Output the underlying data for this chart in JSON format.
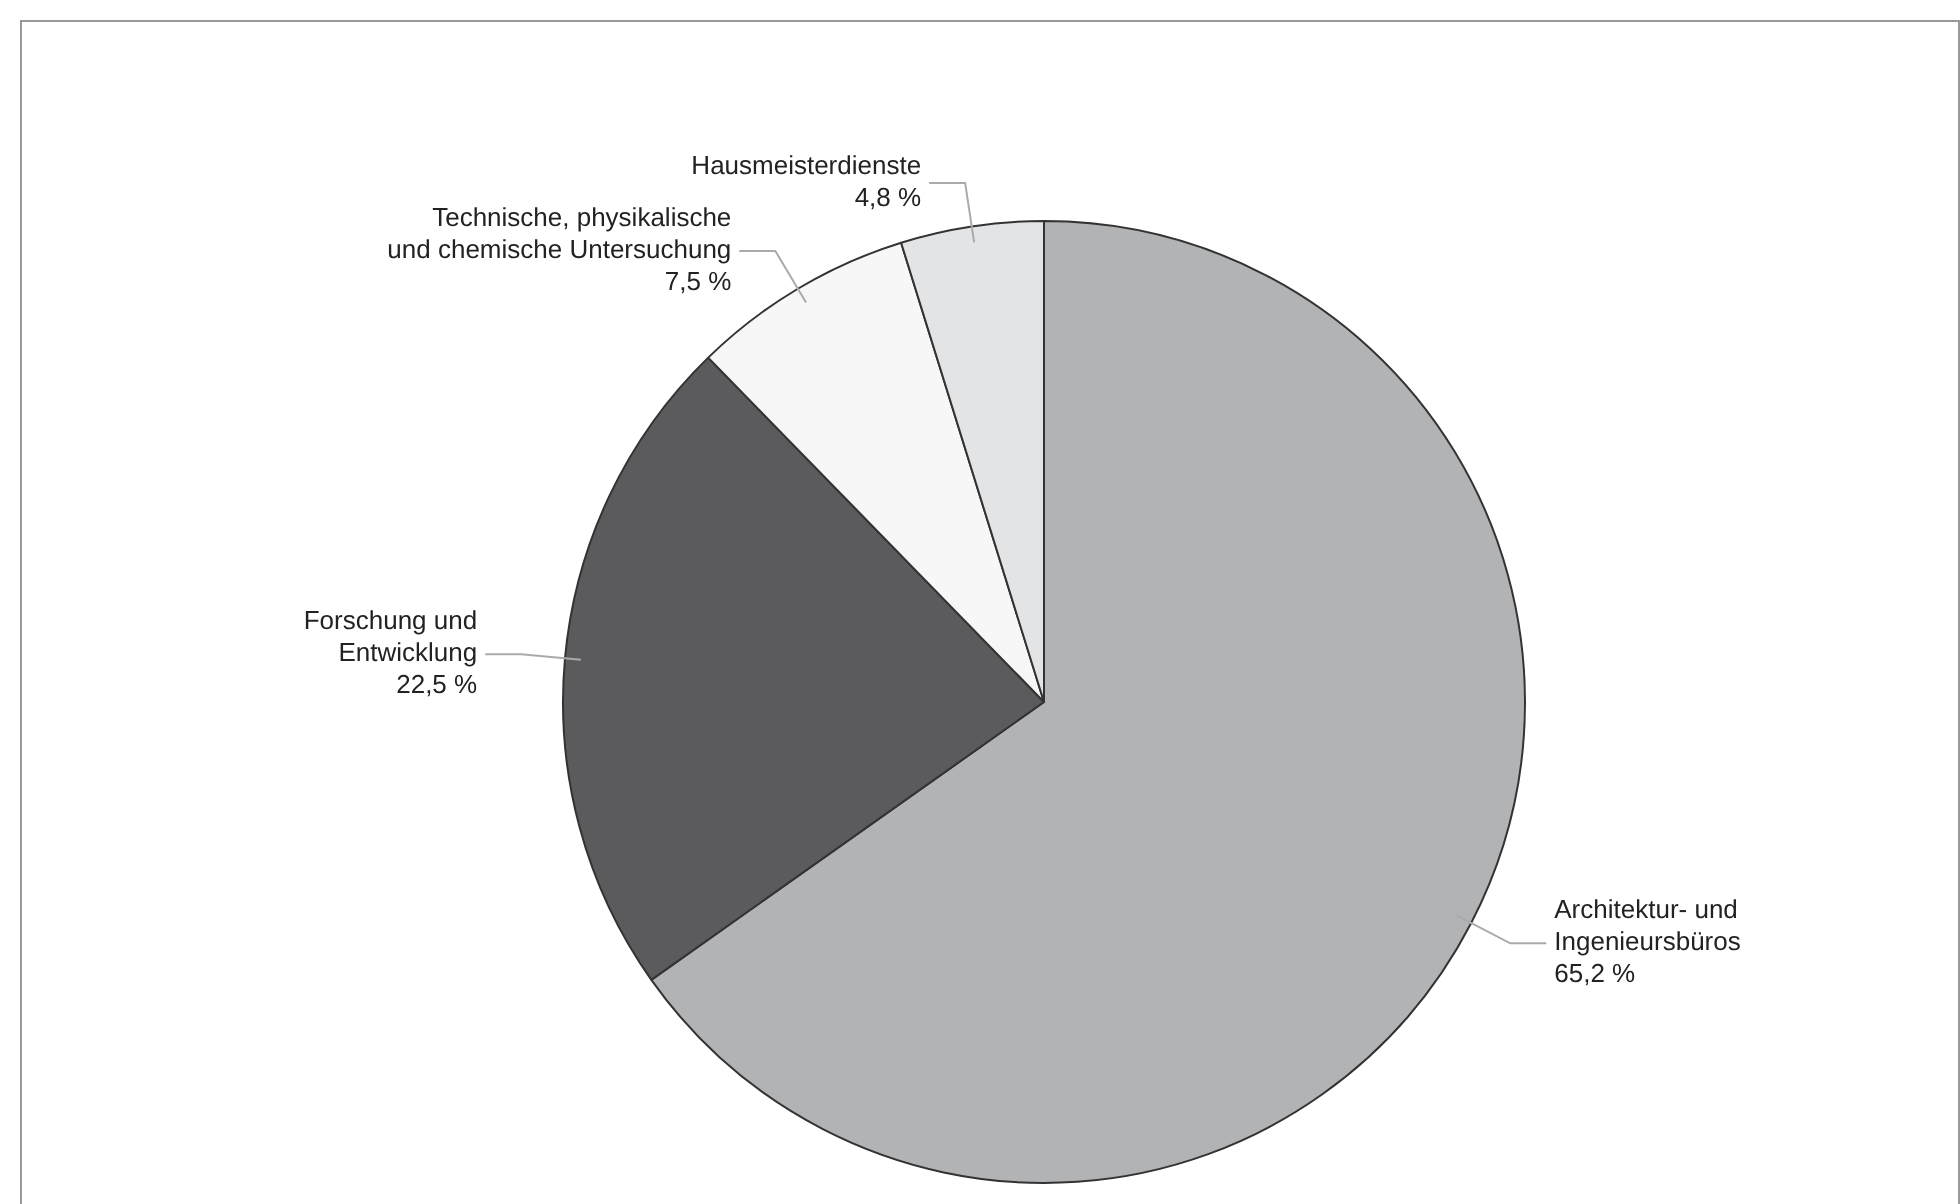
{
  "chart_data": {
    "type": "pie",
    "categories": [
      "Architektur- und\nIngenieursbüros",
      "Forschung und\nEntwicklung",
      "Technische, physikalische\nund chemische Untersuchung",
      "Hausmeisterdienste"
    ],
    "values": [
      65.2,
      22.5,
      7.5,
      4.8
    ],
    "value_labels": [
      "65,2 %",
      "22,5 %",
      "7,5 %",
      "4,8 %"
    ],
    "colors": [
      "#b2b3b5",
      "#5b5b5d",
      "#f7f7f7",
      "#e3e4e6"
    ],
    "legend": false
  }
}
